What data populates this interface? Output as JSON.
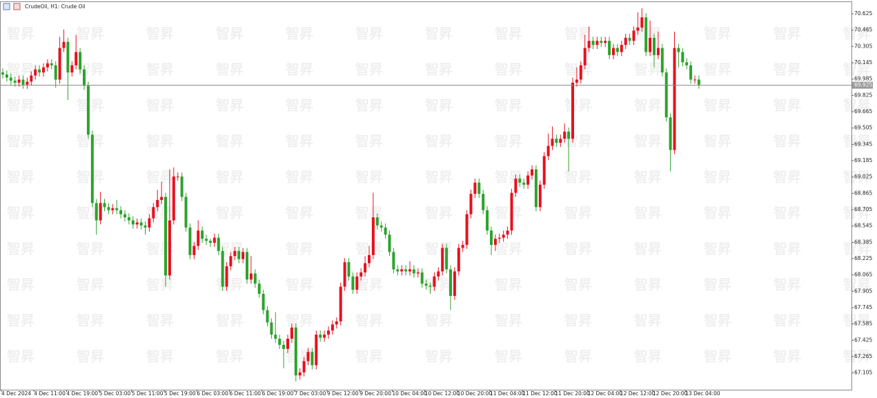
{
  "chart_data": {
    "type": "candlestick",
    "title": "CrudeOil, H1:  Crude Oil",
    "watermark": "智昇",
    "up_color": "#e8101e",
    "down_color": "#2ca32c",
    "current_price": 69.925,
    "ylim": [
      66.94,
      70.74
    ],
    "yticks": [
      67.105,
      67.265,
      67.425,
      67.585,
      67.745,
      67.905,
      68.065,
      68.225,
      68.385,
      68.545,
      68.705,
      68.865,
      69.025,
      69.185,
      69.345,
      69.505,
      69.665,
      69.825,
      69.985,
      70.145,
      70.305,
      70.465,
      70.625
    ],
    "categories": [
      "4 Dec 2024",
      null,
      null,
      null,
      null,
      null,
      null,
      null,
      "4 Dec 11:00",
      null,
      null,
      null,
      null,
      null,
      null,
      null,
      "4 Dec 19:00",
      null,
      null,
      null,
      null,
      null,
      null,
      null,
      "5 Dec 03:00",
      null,
      null,
      null,
      null,
      null,
      null,
      null,
      "5 Dec 11:00",
      null,
      null,
      null,
      null,
      null,
      null,
      null,
      "5 Dec 19:00",
      null,
      null,
      null,
      null,
      null,
      null,
      null,
      "6 Dec 03:00",
      null,
      null,
      null,
      null,
      null,
      null,
      null,
      "6 Dec 11:00",
      null,
      null,
      null,
      null,
      null,
      null,
      null,
      "6 Dec 19:00",
      null,
      null,
      null,
      null,
      null,
      null,
      null,
      "7 Dec 03:00",
      null,
      null,
      null,
      null,
      null,
      null,
      null,
      "9 Dec 12:00",
      null,
      null,
      null,
      null,
      null,
      null,
      null,
      "9 Dec 20:00",
      null,
      null,
      null,
      null,
      null,
      null,
      null,
      "10 Dec 04:00",
      null,
      null,
      null,
      null,
      null,
      null,
      null,
      "10 Dec 12:00",
      null,
      null,
      null,
      null,
      null,
      null,
      null,
      "10 Dec 20:00",
      null,
      null,
      null,
      null,
      null,
      null,
      null,
      "11 Dec 04:00",
      null,
      null,
      null,
      null,
      null,
      null,
      null,
      "11 Dec 12:00",
      null,
      null,
      null,
      null,
      null,
      null,
      null,
      "11 Dec 20:00",
      null,
      null,
      null,
      null,
      null,
      null,
      null,
      "12 Dec 04:00",
      null,
      null,
      null,
      null,
      null,
      null,
      null,
      "12 Dec 12:00",
      null,
      null,
      null,
      null,
      null,
      null,
      null,
      "12 Dec 20:00",
      null,
      null,
      null,
      null,
      null,
      null,
      null,
      "13 Dec 04:00",
      null,
      null,
      null
    ],
    "open": [
      70.05,
      70.03,
      70.0,
      69.97,
      69.95,
      69.98,
      69.93,
      69.96,
      70.02,
      70.08,
      70.05,
      70.1,
      70.14,
      70.12,
      69.98,
      70.29,
      70.35,
      70.05,
      70.12,
      70.25,
      70.08,
      69.92,
      69.44,
      68.77,
      68.6,
      68.77,
      68.73,
      68.7,
      68.72,
      68.7,
      68.66,
      68.63,
      68.6,
      68.56,
      68.58,
      68.55,
      68.53,
      68.62,
      68.73,
      68.8,
      68.83,
      68.06,
      68.6,
      69.03,
      69.03,
      68.83,
      68.53,
      68.26,
      68.35,
      68.5,
      68.42,
      68.4,
      68.38,
      68.43,
      68.3,
      67.95,
      68.15,
      68.25,
      68.3,
      68.22,
      68.29,
      68.02,
      68.08,
      67.98,
      67.88,
      67.72,
      67.6,
      67.48,
      67.44,
      67.38,
      67.34,
      67.44,
      67.55,
      67.08,
      67.11,
      67.22,
      67.31,
      67.18,
      67.48,
      67.45,
      67.48,
      67.52,
      67.58,
      67.61,
      67.95,
      68.19,
      68.05,
      67.92,
      68.05,
      68.09,
      68.18,
      68.26,
      68.63,
      68.55,
      68.53,
      68.46,
      68.29,
      68.12,
      68.1,
      68.12,
      68.1,
      68.12,
      68.08,
      68.09,
      67.98,
      67.96,
      67.95,
      68.05,
      68.1,
      68.33,
      68.12,
      67.86,
      68.1,
      68.33,
      68.36,
      68.66,
      68.86,
      68.97,
      68.86,
      68.7,
      68.5,
      68.36,
      68.42,
      68.43,
      68.46,
      68.5,
      68.87,
      69.01,
      68.97,
      68.95,
      69.04,
      69.1,
      68.73,
      68.95,
      69.23,
      69.33,
      69.4,
      69.36,
      69.4,
      69.47,
      69.4,
      69.95,
      69.98,
      70.12,
      70.29,
      70.36,
      70.32,
      70.36,
      70.34,
      70.36,
      70.22,
      70.29,
      70.25,
      70.32,
      70.39,
      70.36,
      70.46,
      70.49,
      70.59,
      70.25,
      70.39,
      70.22,
      70.29,
      70.05,
      69.61,
      69.29,
      70.29,
      70.25,
      70.15,
      70.12,
      69.98,
      69.98
    ],
    "high": [
      70.09,
      70.07,
      70.04,
      70.01,
      70.02,
      70.02,
      70.0,
      70.06,
      70.12,
      70.12,
      70.14,
      70.18,
      70.18,
      70.16,
      70.4,
      70.47,
      70.39,
      70.16,
      70.42,
      70.29,
      70.12,
      69.96,
      69.48,
      68.81,
      68.88,
      68.81,
      68.77,
      68.76,
      68.8,
      68.74,
      68.7,
      68.67,
      68.64,
      68.62,
      68.62,
      68.59,
      68.66,
      68.77,
      68.9,
      68.98,
      68.87,
      69.1,
      69.12,
      69.07,
      69.07,
      68.87,
      68.57,
      68.39,
      68.6,
      68.54,
      68.46,
      68.42,
      68.47,
      68.47,
      68.34,
      68.19,
      68.29,
      68.34,
      68.34,
      68.33,
      68.33,
      68.25,
      68.12,
      68.02,
      67.92,
      67.76,
      67.64,
      67.7,
      67.48,
      67.42,
      67.48,
      67.59,
      67.59,
      67.15,
      67.26,
      67.35,
      67.35,
      67.52,
      67.52,
      67.52,
      67.56,
      67.62,
      67.65,
      67.99,
      68.23,
      68.23,
      68.09,
      68.09,
      68.13,
      68.25,
      68.35,
      68.87,
      68.67,
      68.59,
      68.57,
      68.5,
      68.33,
      68.16,
      68.16,
      68.16,
      68.2,
      68.16,
      68.13,
      68.13,
      68.02,
      67.99,
      68.09,
      68.14,
      68.37,
      68.37,
      68.16,
      68.14,
      68.37,
      68.4,
      68.7,
      68.9,
      69.01,
      69.01,
      68.9,
      68.74,
      68.54,
      68.46,
      68.47,
      68.5,
      68.54,
      68.91,
      69.05,
      69.05,
      69.01,
      69.08,
      69.14,
      69.14,
      68.99,
      69.27,
      69.45,
      69.52,
      69.44,
      69.44,
      69.55,
      69.51,
      70.0,
      70.1,
      70.16,
      70.42,
      70.5,
      70.4,
      70.4,
      70.4,
      70.4,
      70.4,
      70.33,
      70.33,
      70.36,
      70.43,
      70.43,
      70.5,
      70.64,
      70.68,
      70.63,
      70.56,
      70.43,
      70.45,
      70.33,
      70.09,
      69.65,
      70.45,
      70.33,
      70.29,
      70.19,
      70.16,
      70.02,
      70.02
    ],
    "low": [
      69.99,
      69.96,
      69.93,
      69.91,
      69.91,
      69.89,
      69.89,
      69.92,
      69.98,
      70.01,
      70.01,
      70.06,
      70.08,
      69.9,
      69.94,
      70.25,
      69.78,
      70.01,
      70.08,
      70.04,
      69.88,
      69.4,
      68.73,
      68.46,
      68.56,
      68.69,
      68.66,
      68.66,
      68.66,
      68.62,
      68.59,
      68.56,
      68.52,
      68.52,
      68.51,
      68.46,
      68.49,
      68.58,
      68.69,
      68.76,
      67.95,
      68.02,
      68.56,
      68.99,
      68.79,
      68.49,
      68.22,
      68.22,
      68.31,
      68.38,
      68.36,
      68.34,
      68.34,
      68.26,
      67.91,
      67.91,
      68.11,
      68.21,
      68.18,
      68.18,
      67.98,
      67.98,
      67.94,
      67.84,
      67.68,
      67.56,
      67.44,
      67.4,
      67.34,
      67.15,
      67.3,
      67.4,
      67.02,
      67.04,
      67.07,
      67.18,
      67.14,
      67.14,
      67.41,
      67.41,
      67.44,
      67.48,
      67.54,
      67.57,
      67.91,
      68.01,
      67.88,
      67.88,
      68.01,
      68.05,
      68.14,
      68.22,
      68.51,
      68.49,
      68.42,
      68.25,
      68.08,
      68.06,
      68.06,
      68.06,
      68.06,
      68.04,
      68.04,
      67.94,
      67.92,
      67.88,
      67.91,
      68.01,
      68.06,
      68.08,
      67.72,
      67.82,
      68.06,
      68.29,
      68.32,
      68.62,
      68.82,
      68.82,
      68.66,
      68.46,
      68.26,
      68.3,
      68.38,
      68.39,
      68.42,
      68.46,
      68.83,
      68.93,
      68.91,
      68.91,
      69.0,
      68.69,
      68.69,
      68.91,
      69.19,
      69.29,
      69.32,
      69.32,
      69.36,
      69.08,
      69.36,
      69.91,
      69.94,
      70.08,
      70.25,
      70.28,
      70.28,
      70.3,
      70.3,
      70.18,
      70.18,
      70.21,
      70.21,
      70.28,
      70.32,
      70.32,
      70.42,
      70.45,
      70.21,
      70.21,
      70.1,
      70.18,
      70.01,
      69.57,
      69.08,
      69.25,
      70.1,
      70.11,
      70.08,
      69.94,
      69.94,
      69.89
    ],
    "close": [
      70.03,
      70.0,
      69.97,
      69.95,
      69.98,
      69.93,
      69.96,
      70.02,
      70.08,
      70.05,
      70.1,
      70.14,
      70.12,
      69.98,
      70.29,
      70.35,
      70.05,
      70.12,
      70.25,
      70.08,
      69.92,
      69.44,
      68.77,
      68.6,
      68.77,
      68.73,
      68.7,
      68.72,
      68.7,
      68.66,
      68.63,
      68.6,
      68.56,
      68.58,
      68.55,
      68.53,
      68.62,
      68.73,
      68.8,
      68.83,
      68.06,
      68.6,
      69.03,
      69.03,
      68.83,
      68.53,
      68.26,
      68.35,
      68.5,
      68.42,
      68.4,
      68.38,
      68.43,
      68.3,
      67.95,
      68.15,
      68.25,
      68.3,
      68.22,
      68.29,
      68.02,
      68.08,
      67.98,
      67.88,
      67.72,
      67.6,
      67.48,
      67.44,
      67.38,
      67.34,
      67.44,
      67.55,
      67.08,
      67.11,
      67.22,
      67.31,
      67.18,
      67.48,
      67.45,
      67.48,
      67.52,
      67.58,
      67.61,
      67.95,
      68.19,
      68.05,
      67.92,
      68.05,
      68.09,
      68.18,
      68.26,
      68.63,
      68.55,
      68.53,
      68.46,
      68.29,
      68.12,
      68.1,
      68.12,
      68.1,
      68.12,
      68.08,
      68.09,
      67.98,
      67.96,
      67.95,
      68.05,
      68.1,
      68.33,
      68.12,
      67.86,
      68.1,
      68.33,
      68.36,
      68.66,
      68.86,
      68.97,
      68.86,
      68.7,
      68.5,
      68.36,
      68.42,
      68.43,
      68.46,
      68.5,
      68.87,
      69.01,
      68.97,
      68.95,
      69.04,
      69.1,
      68.73,
      68.95,
      69.23,
      69.33,
      69.4,
      69.36,
      69.4,
      69.47,
      69.4,
      69.95,
      69.98,
      70.12,
      70.29,
      70.36,
      70.32,
      70.36,
      70.34,
      70.36,
      70.22,
      70.29,
      70.25,
      70.32,
      70.39,
      70.36,
      70.46,
      70.49,
      70.59,
      70.25,
      70.39,
      70.22,
      70.29,
      70.05,
      69.61,
      69.29,
      70.29,
      70.25,
      70.15,
      70.12,
      69.98,
      69.98,
      69.93
    ]
  }
}
